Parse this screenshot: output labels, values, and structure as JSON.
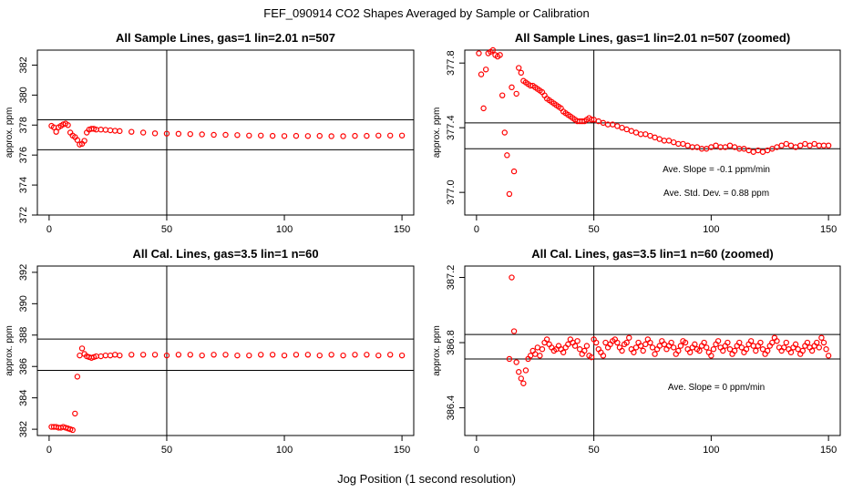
{
  "figure_title": "FEF_090914  CO2 Shapes Averaged by Sample or Calibration",
  "x_axis_label": "Jog Position (1 second resolution)",
  "colors": {
    "points": "#ff0000",
    "axes": "#000000",
    "background": "#ffffff"
  },
  "chart_data": [
    {
      "type": "scatter",
      "title": "All Sample Lines, gas=1 lin=2.01 n=507",
      "ylabel": "approx. ppm",
      "xlim": [
        -5,
        155
      ],
      "ylim": [
        372,
        383
      ],
      "xticks": [
        0,
        50,
        100,
        150
      ],
      "yticks": [
        372,
        374,
        376,
        378,
        380,
        382
      ],
      "hlines": [
        378.35,
        376.35
      ],
      "vline": 50,
      "annotations": [],
      "points": [
        [
          1,
          377.95
        ],
        [
          2,
          377.85
        ],
        [
          3,
          377.55
        ],
        [
          4,
          377.85
        ],
        [
          5,
          377.95
        ],
        [
          6,
          378.05
        ],
        [
          7,
          378.1
        ],
        [
          8,
          378.0
        ],
        [
          9,
          377.5
        ],
        [
          10,
          377.3
        ],
        [
          11,
          377.2
        ],
        [
          12,
          377.0
        ],
        [
          13,
          376.7
        ],
        [
          14,
          376.75
        ],
        [
          15,
          376.95
        ],
        [
          16,
          377.5
        ],
        [
          17,
          377.7
        ],
        [
          18,
          377.75
        ],
        [
          19,
          377.75
        ],
        [
          20,
          377.7
        ],
        [
          22,
          377.7
        ],
        [
          24,
          377.68
        ],
        [
          26,
          377.65
        ],
        [
          28,
          377.62
        ],
        [
          30,
          377.6
        ],
        [
          35,
          377.55
        ],
        [
          40,
          377.5
        ],
        [
          45,
          377.45
        ],
        [
          50,
          377.43
        ],
        [
          55,
          377.42
        ],
        [
          60,
          377.4
        ],
        [
          65,
          377.38
        ],
        [
          70,
          377.35
        ],
        [
          75,
          377.35
        ],
        [
          80,
          377.33
        ],
        [
          85,
          377.3
        ],
        [
          90,
          377.3
        ],
        [
          95,
          377.28
        ],
        [
          100,
          377.27
        ],
        [
          105,
          377.28
        ],
        [
          110,
          377.27
        ],
        [
          115,
          377.28
        ],
        [
          120,
          377.26
        ],
        [
          125,
          377.26
        ],
        [
          130,
          377.28
        ],
        [
          135,
          377.28
        ],
        [
          140,
          377.3
        ],
        [
          145,
          377.3
        ],
        [
          150,
          377.3
        ]
      ]
    },
    {
      "type": "scatter",
      "title": "All Sample Lines, gas=1 lin=2.01 n=507 (zoomed)",
      "ylabel": "approx. ppm",
      "xlim": [
        -5,
        155
      ],
      "ylim": [
        376.86,
        377.88
      ],
      "xticks": [
        0,
        50,
        100,
        150
      ],
      "yticks": [
        377.0,
        377.4,
        377.8
      ],
      "hlines": [
        377.43,
        377.27
      ],
      "vline": 50,
      "annotations": [
        "Ave. Slope =  -0.1  ppm/min",
        "Ave. Std. Dev. =  0.88  ppm"
      ],
      "points": [
        [
          1,
          377.86
        ],
        [
          2,
          377.73
        ],
        [
          3,
          377.52
        ],
        [
          4,
          377.76
        ],
        [
          5,
          377.86
        ],
        [
          6,
          377.87
        ],
        [
          7,
          377.88
        ],
        [
          8,
          377.85
        ],
        [
          9,
          377.84
        ],
        [
          10,
          377.85
        ],
        [
          11,
          377.6
        ],
        [
          12,
          377.37
        ],
        [
          13,
          377.23
        ],
        [
          14,
          376.99
        ],
        [
          15,
          377.65
        ],
        [
          16,
          377.13
        ],
        [
          17,
          377.61
        ],
        [
          18,
          377.77
        ],
        [
          19,
          377.74
        ],
        [
          20,
          377.69
        ],
        [
          21,
          377.68
        ],
        [
          22,
          377.67
        ],
        [
          23,
          377.66
        ],
        [
          24,
          377.66
        ],
        [
          25,
          377.65
        ],
        [
          26,
          377.64
        ],
        [
          27,
          377.63
        ],
        [
          28,
          377.62
        ],
        [
          29,
          377.6
        ],
        [
          30,
          377.58
        ],
        [
          31,
          377.57
        ],
        [
          32,
          377.56
        ],
        [
          33,
          377.55
        ],
        [
          34,
          377.54
        ],
        [
          35,
          377.53
        ],
        [
          36,
          377.52
        ],
        [
          37,
          377.5
        ],
        [
          38,
          377.49
        ],
        [
          39,
          377.48
        ],
        [
          40,
          377.47
        ],
        [
          41,
          377.46
        ],
        [
          42,
          377.45
        ],
        [
          43,
          377.44
        ],
        [
          44,
          377.44
        ],
        [
          45,
          377.44
        ],
        [
          46,
          377.44
        ],
        [
          47,
          377.45
        ],
        [
          48,
          377.46
        ],
        [
          49,
          377.45
        ],
        [
          50,
          377.45
        ],
        [
          52,
          377.44
        ],
        [
          54,
          377.43
        ],
        [
          56,
          377.42
        ],
        [
          58,
          377.42
        ],
        [
          60,
          377.41
        ],
        [
          62,
          377.4
        ],
        [
          64,
          377.39
        ],
        [
          66,
          377.38
        ],
        [
          68,
          377.37
        ],
        [
          70,
          377.36
        ],
        [
          72,
          377.36
        ],
        [
          74,
          377.35
        ],
        [
          76,
          377.34
        ],
        [
          78,
          377.33
        ],
        [
          80,
          377.32
        ],
        [
          82,
          377.32
        ],
        [
          84,
          377.31
        ],
        [
          86,
          377.3
        ],
        [
          88,
          377.3
        ],
        [
          90,
          377.29
        ],
        [
          92,
          377.28
        ],
        [
          94,
          377.28
        ],
        [
          96,
          377.27
        ],
        [
          98,
          377.27
        ],
        [
          100,
          377.28
        ],
        [
          102,
          377.29
        ],
        [
          104,
          377.28
        ],
        [
          106,
          377.28
        ],
        [
          108,
          377.29
        ],
        [
          110,
          377.28
        ],
        [
          112,
          377.27
        ],
        [
          114,
          377.27
        ],
        [
          116,
          377.26
        ],
        [
          118,
          377.25
        ],
        [
          120,
          377.26
        ],
        [
          122,
          377.25
        ],
        [
          124,
          377.26
        ],
        [
          126,
          377.27
        ],
        [
          128,
          377.28
        ],
        [
          130,
          377.29
        ],
        [
          132,
          377.3
        ],
        [
          134,
          377.29
        ],
        [
          136,
          377.28
        ],
        [
          138,
          377.29
        ],
        [
          140,
          377.3
        ],
        [
          142,
          377.29
        ],
        [
          144,
          377.3
        ],
        [
          146,
          377.29
        ],
        [
          148,
          377.29
        ],
        [
          150,
          377.29
        ]
      ]
    },
    {
      "type": "scatter",
      "title": "All Cal. Lines, gas=3.5 lin=1 n=60",
      "ylabel": "approx. ppm",
      "xlim": [
        -5,
        155
      ],
      "ylim": [
        381.6,
        392.4
      ],
      "xticks": [
        0,
        50,
        100,
        150
      ],
      "yticks": [
        382,
        384,
        386,
        388,
        390,
        392
      ],
      "hlines": [
        387.75,
        385.75
      ],
      "vline": 50,
      "annotations": [],
      "points": [
        [
          1,
          382.15
        ],
        [
          2,
          382.15
        ],
        [
          3,
          382.15
        ],
        [
          4,
          382.1
        ],
        [
          5,
          382.1
        ],
        [
          6,
          382.15
        ],
        [
          7,
          382.1
        ],
        [
          8,
          382.05
        ],
        [
          9,
          382.0
        ],
        [
          10,
          381.95
        ],
        [
          11,
          383.0
        ],
        [
          12,
          385.35
        ],
        [
          13,
          386.7
        ],
        [
          14,
          387.15
        ],
        [
          15,
          386.8
        ],
        [
          16,
          386.65
        ],
        [
          17,
          386.6
        ],
        [
          18,
          386.55
        ],
        [
          19,
          386.6
        ],
        [
          20,
          386.65
        ],
        [
          22,
          386.65
        ],
        [
          24,
          386.7
        ],
        [
          26,
          386.7
        ],
        [
          28,
          386.75
        ],
        [
          30,
          386.7
        ],
        [
          35,
          386.75
        ],
        [
          40,
          386.75
        ],
        [
          45,
          386.75
        ],
        [
          50,
          386.7
        ],
        [
          55,
          386.75
        ],
        [
          60,
          386.75
        ],
        [
          65,
          386.7
        ],
        [
          70,
          386.75
        ],
        [
          75,
          386.75
        ],
        [
          80,
          386.7
        ],
        [
          85,
          386.7
        ],
        [
          90,
          386.75
        ],
        [
          95,
          386.75
        ],
        [
          100,
          386.7
        ],
        [
          105,
          386.75
        ],
        [
          110,
          386.75
        ],
        [
          115,
          386.7
        ],
        [
          120,
          386.75
        ],
        [
          125,
          386.7
        ],
        [
          130,
          386.75
        ],
        [
          135,
          386.75
        ],
        [
          140,
          386.7
        ],
        [
          145,
          386.75
        ],
        [
          150,
          386.7
        ]
      ]
    },
    {
      "type": "scatter",
      "title": "All Cal. Lines, gas=3.5 lin=1 n=60 (zoomed)",
      "ylabel": "approx. ppm",
      "xlim": [
        -5,
        155
      ],
      "ylim": [
        386.23,
        387.27
      ],
      "xticks": [
        0,
        50,
        100,
        150
      ],
      "yticks": [
        386.4,
        386.8,
        387.2
      ],
      "hlines": [
        386.85,
        386.7
      ],
      "vline": 50,
      "annotations": [
        "Ave. Slope =  0  ppm/min"
      ],
      "points": [
        [
          14,
          386.7
        ],
        [
          15,
          387.2
        ],
        [
          16,
          386.87
        ],
        [
          17,
          386.68
        ],
        [
          18,
          386.62
        ],
        [
          19,
          386.58
        ],
        [
          20,
          386.55
        ],
        [
          21,
          386.63
        ],
        [
          22,
          386.7
        ],
        [
          23,
          386.72
        ],
        [
          24,
          386.75
        ],
        [
          25,
          386.73
        ],
        [
          26,
          386.77
        ],
        [
          27,
          386.72
        ],
        [
          28,
          386.76
        ],
        [
          29,
          386.8
        ],
        [
          30,
          386.82
        ],
        [
          31,
          386.79
        ],
        [
          32,
          386.77
        ],
        [
          33,
          386.75
        ],
        [
          34,
          386.76
        ],
        [
          35,
          386.78
        ],
        [
          36,
          386.76
        ],
        [
          37,
          386.74
        ],
        [
          38,
          386.77
        ],
        [
          39,
          386.79
        ],
        [
          40,
          386.82
        ],
        [
          41,
          386.8
        ],
        [
          42,
          386.78
        ],
        [
          43,
          386.81
        ],
        [
          44,
          386.76
        ],
        [
          45,
          386.73
        ],
        [
          46,
          386.75
        ],
        [
          47,
          386.78
        ],
        [
          48,
          386.72
        ],
        [
          49,
          386.71
        ],
        [
          50,
          386.82
        ],
        [
          51,
          386.8
        ],
        [
          52,
          386.76
        ],
        [
          53,
          386.74
        ],
        [
          54,
          386.72
        ],
        [
          55,
          386.8
        ],
        [
          56,
          386.77
        ],
        [
          57,
          386.79
        ],
        [
          58,
          386.81
        ],
        [
          59,
          386.82
        ],
        [
          60,
          386.8
        ],
        [
          61,
          386.77
        ],
        [
          62,
          386.75
        ],
        [
          63,
          386.79
        ],
        [
          64,
          386.8
        ],
        [
          65,
          386.83
        ],
        [
          66,
          386.76
        ],
        [
          67,
          386.74
        ],
        [
          68,
          386.77
        ],
        [
          69,
          386.8
        ],
        [
          70,
          386.78
        ],
        [
          71,
          386.75
        ],
        [
          72,
          386.79
        ],
        [
          73,
          386.82
        ],
        [
          74,
          386.8
        ],
        [
          75,
          386.77
        ],
        [
          76,
          386.73
        ],
        [
          77,
          386.76
        ],
        [
          78,
          386.78
        ],
        [
          79,
          386.81
        ],
        [
          80,
          386.79
        ],
        [
          81,
          386.76
        ],
        [
          82,
          386.78
        ],
        [
          83,
          386.8
        ],
        [
          84,
          386.77
        ],
        [
          85,
          386.73
        ],
        [
          86,
          386.75
        ],
        [
          87,
          386.78
        ],
        [
          88,
          386.81
        ],
        [
          89,
          386.8
        ],
        [
          90,
          386.76
        ],
        [
          91,
          386.74
        ],
        [
          92,
          386.77
        ],
        [
          93,
          386.79
        ],
        [
          94,
          386.76
        ],
        [
          95,
          386.75
        ],
        [
          96,
          386.78
        ],
        [
          97,
          386.8
        ],
        [
          98,
          386.77
        ],
        [
          99,
          386.74
        ],
        [
          100,
          386.72
        ],
        [
          101,
          386.76
        ],
        [
          102,
          386.79
        ],
        [
          103,
          386.81
        ],
        [
          104,
          386.77
        ],
        [
          105,
          386.75
        ],
        [
          106,
          386.78
        ],
        [
          107,
          386.8
        ],
        [
          108,
          386.76
        ],
        [
          109,
          386.73
        ],
        [
          110,
          386.75
        ],
        [
          111,
          386.78
        ],
        [
          112,
          386.8
        ],
        [
          113,
          386.77
        ],
        [
          114,
          386.74
        ],
        [
          115,
          386.76
        ],
        [
          116,
          386.79
        ],
        [
          117,
          386.81
        ],
        [
          118,
          386.78
        ],
        [
          119,
          386.75
        ],
        [
          120,
          386.78
        ],
        [
          121,
          386.8
        ],
        [
          122,
          386.76
        ],
        [
          123,
          386.73
        ],
        [
          124,
          386.75
        ],
        [
          125,
          386.78
        ],
        [
          126,
          386.8
        ],
        [
          127,
          386.83
        ],
        [
          128,
          386.81
        ],
        [
          129,
          386.77
        ],
        [
          130,
          386.75
        ],
        [
          131,
          386.77
        ],
        [
          132,
          386.8
        ],
        [
          133,
          386.76
        ],
        [
          134,
          386.74
        ],
        [
          135,
          386.77
        ],
        [
          136,
          386.79
        ],
        [
          137,
          386.76
        ],
        [
          138,
          386.73
        ],
        [
          139,
          386.75
        ],
        [
          140,
          386.78
        ],
        [
          141,
          386.8
        ],
        [
          142,
          386.77
        ],
        [
          143,
          386.75
        ],
        [
          144,
          386.78
        ],
        [
          145,
          386.8
        ],
        [
          146,
          386.77
        ],
        [
          147,
          386.83
        ],
        [
          148,
          386.8
        ],
        [
          149,
          386.76
        ],
        [
          150,
          386.72
        ]
      ]
    }
  ]
}
